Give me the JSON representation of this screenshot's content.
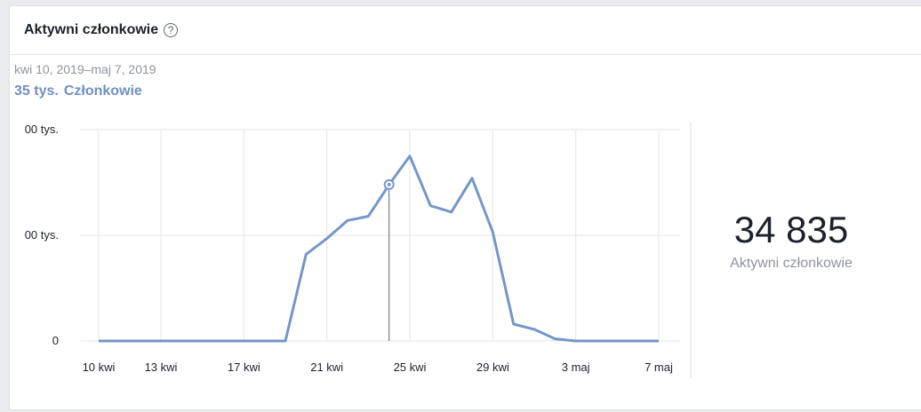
{
  "card": {
    "title": "Aktywni członkowie",
    "help_icon": "question-circle-icon",
    "date_range": "kwi 10, 2019–maj 7, 2019",
    "summary_value": "35 tys.",
    "summary_label": "Członkowie"
  },
  "kpi": {
    "value": "34 835",
    "label": "Aktywni członkowie"
  },
  "colors": {
    "line": "#7596c8",
    "grid": "#e5e5e5",
    "hover_line": "#606770"
  },
  "chart_data": {
    "type": "line",
    "title": "",
    "xlabel": "",
    "ylabel": "",
    "ylim": [
      0,
      200
    ],
    "y_ticks": [
      {
        "value": 0,
        "label": "0"
      },
      {
        "value": 100,
        "label": "00 tys."
      },
      {
        "value": 200,
        "label": "00 tys."
      }
    ],
    "x_ticks": [
      "10 kwi",
      "13 kwi",
      "17 kwi",
      "21 kwi",
      "25 kwi",
      "29 kwi",
      "3 maj",
      "7 maj"
    ],
    "x_tick_indices": [
      0,
      3,
      7,
      11,
      15,
      19,
      23,
      27
    ],
    "grid": true,
    "legend": "none",
    "highlight_index": 14,
    "series": [
      {
        "values": [
          0,
          0,
          0,
          0,
          0,
          0,
          0,
          0,
          0,
          0,
          82,
          97,
          114,
          118,
          148,
          175,
          128,
          122,
          154,
          103,
          16,
          11,
          2,
          0,
          0,
          0,
          0,
          0
        ]
      }
    ]
  }
}
